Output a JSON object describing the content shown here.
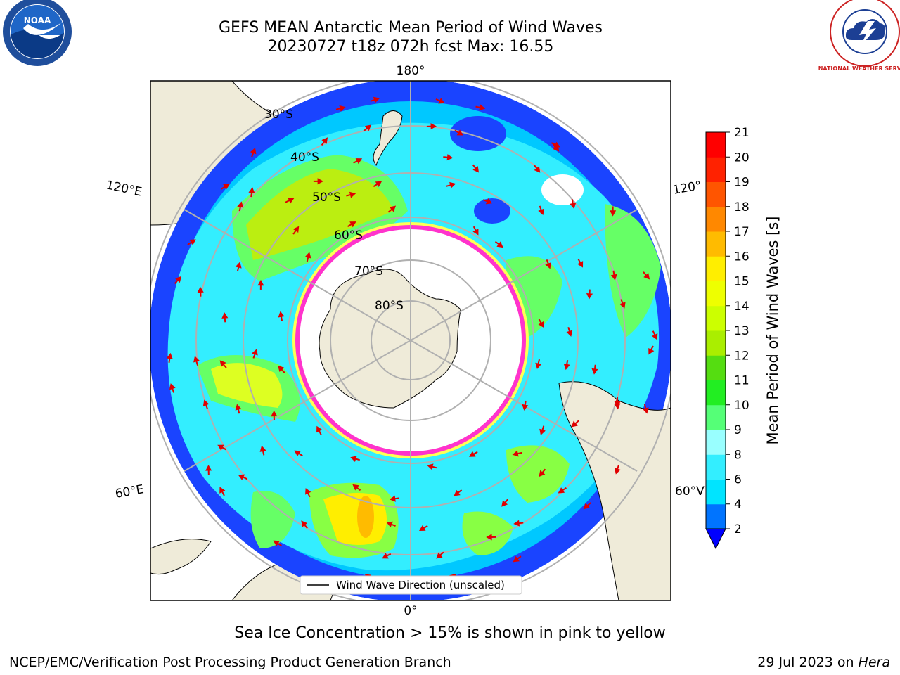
{
  "title": {
    "line1": "GEFS MEAN Antarctic Mean Period of Wind Waves",
    "line2": "20230727 t18z 072h fcst   Max: 16.55"
  },
  "map": {
    "projection": "south-polar-stereographic",
    "lon_labels": {
      "top": "180°",
      "bottom": "0°",
      "upper_left": "120°E",
      "lower_left": "60°E",
      "upper_right": "120°",
      "lower_right": "60°V"
    },
    "lat_labels": [
      "30°S",
      "40°S",
      "50°S",
      "60°S",
      "70°S",
      "80°S"
    ],
    "legend_entry": "Wind Wave Direction (unscaled)",
    "arrow_color": "#e00000",
    "sea_ice_colors": [
      "#ff33cc",
      "#ffff55"
    ],
    "land_color": "#efebd9"
  },
  "colorbar": {
    "label": "Mean Period of Wind Waves [s]",
    "ticks": [
      "2",
      "4",
      "6",
      "8",
      "9",
      "10",
      "11",
      "12",
      "13",
      "14",
      "15",
      "16",
      "17",
      "18",
      "19",
      "20",
      "21"
    ],
    "colors": [
      "#0074ff",
      "#00e4ff",
      "#33eeff",
      "#99ffff",
      "#55ff77",
      "#22ee22",
      "#55dd11",
      "#aaee00",
      "#ccff00",
      "#eeff00",
      "#ffee00",
      "#ffbb00",
      "#ff8800",
      "#ff5500",
      "#ff2200",
      "#ff0000"
    ],
    "under_color": "#0000ff"
  },
  "caption": "Sea Ice Concentration > 15% is shown in pink to yellow",
  "footer": {
    "left": "NCEP/EMC/Verification Post Processing Product Generation Branch",
    "right_prefix": "29 Jul 2023 on ",
    "right_host": "Hera"
  },
  "logos": {
    "noaa": "NOAA",
    "nws": "NATIONAL WEATHER SERVICE"
  }
}
